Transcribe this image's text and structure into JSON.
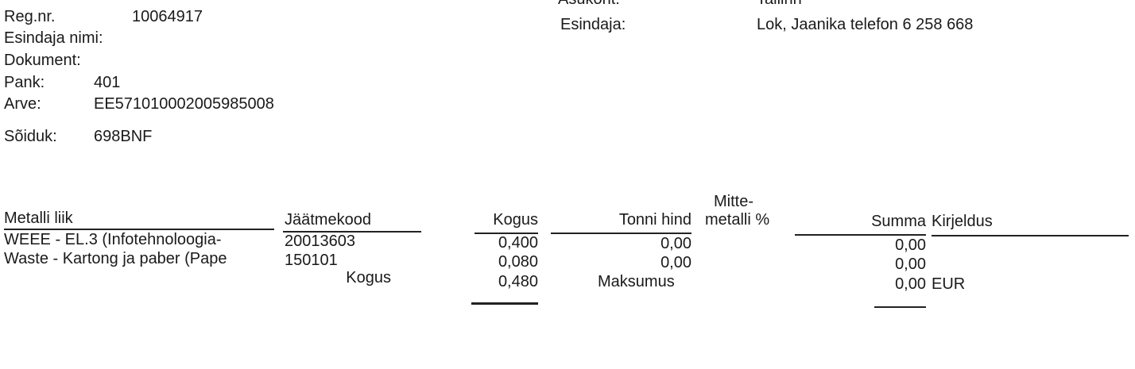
{
  "header": {
    "reg_label": "Reg.nr.",
    "reg_value": "10064917",
    "rep_name_label": "Esindaja nimi:",
    "doc_label": "Dokument:",
    "bank_label": "Pank:",
    "bank_value": "401",
    "account_label": "Arve:",
    "account_value": "EE571010002005985008",
    "vehicle_label": "Sõiduk:",
    "vehicle_value": "698BNF",
    "location_label": "Asukoht:",
    "location_value": "Tallinn",
    "rep_label": "Esindaja:",
    "rep_value": "Lok, Jaanika telefon 6 258 668"
  },
  "table": {
    "columns": [
      "Metalli liik",
      "Jäätmekood",
      "Kogus",
      "Tonni hind",
      "Mitte-",
      "metalli %",
      "Summa",
      "Kirjeldus"
    ],
    "rows": [
      {
        "metal": "WEEE - EL.3 (Infotehnoloogia-",
        "code": "20013603",
        "qty": "0,400",
        "price": "0,00",
        "nonmetal": "",
        "sum": "0,00",
        "desc": ""
      },
      {
        "metal": "Waste - Kartong ja paber (Pape",
        "code": "150101",
        "qty": "0,080",
        "price": "0,00",
        "nonmetal": "",
        "sum": "0,00",
        "desc": ""
      }
    ],
    "totals": {
      "qty_label": "Kogus",
      "qty": "0,480",
      "cost_label": "Maksumus",
      "sum": "0,00",
      "currency": "EUR"
    }
  }
}
